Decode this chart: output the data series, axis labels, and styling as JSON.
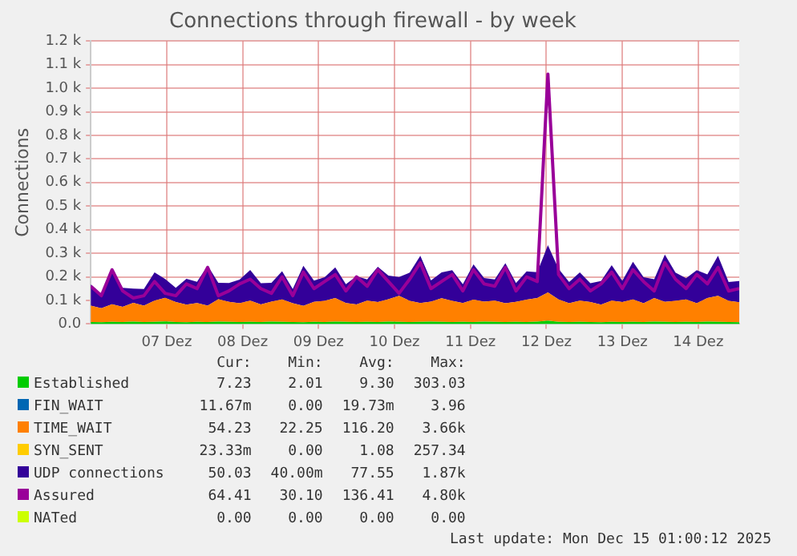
{
  "chart_data": {
    "type": "area",
    "title": "Connections through firewall - by week",
    "ylabel": "Connections",
    "stacked": true,
    "grid": true,
    "legend": "bottom",
    "marker": "none",
    "x": [
      6.5,
      6.64,
      6.78,
      6.92,
      7.06,
      7.2,
      7.34,
      7.48,
      7.62,
      7.76,
      7.9,
      8.04,
      8.18,
      8.32,
      8.46,
      8.6,
      8.74,
      8.88,
      9.02,
      9.16,
      9.3,
      9.44,
      9.58,
      9.72,
      9.86,
      10,
      10.14,
      10.28,
      10.42,
      10.56,
      10.7,
      10.84,
      10.98,
      11.12,
      11.26,
      11.4,
      11.54,
      11.68,
      11.82,
      11.96,
      12.1,
      12.24,
      12.38,
      12.52,
      12.66,
      12.8,
      12.94,
      13.08,
      13.22,
      13.36,
      13.5,
      13.64,
      13.78,
      13.92,
      14.06,
      14.2,
      14.34,
      14.48,
      14.62,
      14.76,
      14.9,
      15.04
    ],
    "xlim": [
      6.5,
      15.04
    ],
    "xticks": [
      {
        "value": 7.5,
        "label": "07 Dez"
      },
      {
        "value": 8.5,
        "label": "08 Dez"
      },
      {
        "value": 9.5,
        "label": "09 Dez"
      },
      {
        "value": 10.5,
        "label": "10 Dez"
      },
      {
        "value": 11.5,
        "label": "11 Dez"
      },
      {
        "value": 12.5,
        "label": "12 Dez"
      },
      {
        "value": 13.5,
        "label": "13 Dez"
      },
      {
        "value": 14.5,
        "label": "14 Dez"
      }
    ],
    "ylim": [
      0,
      1200
    ],
    "yticks": [
      {
        "value": 0,
        "label": "0.0"
      },
      {
        "value": 100,
        "label": "0.1 k"
      },
      {
        "value": 200,
        "label": "0.2 k"
      },
      {
        "value": 300,
        "label": "0.3 k"
      },
      {
        "value": 400,
        "label": "0.4 k"
      },
      {
        "value": 500,
        "label": "0.5 k"
      },
      {
        "value": 600,
        "label": "0.6 k"
      },
      {
        "value": 700,
        "label": "0.7 k"
      },
      {
        "value": 800,
        "label": "0.8 k"
      },
      {
        "value": 900,
        "label": "0.9 k"
      },
      {
        "value": 1000,
        "label": "1.0 k"
      },
      {
        "value": 1100,
        "label": "1.1 k"
      },
      {
        "value": 1200,
        "label": "1.2 k"
      }
    ],
    "series": [
      {
        "name": "Established",
        "color": "#00cc00",
        "values": [
          8,
          7,
          9,
          8,
          10,
          8,
          9,
          11,
          8,
          7,
          9,
          8,
          10,
          9,
          8,
          9,
          8,
          10,
          9,
          8,
          7,
          9,
          8,
          10,
          9,
          8,
          9,
          8,
          10,
          9,
          8,
          9,
          10,
          9,
          8,
          9,
          8,
          10,
          9,
          8,
          9,
          8,
          10,
          14,
          9,
          8,
          9,
          8,
          7,
          9,
          8,
          9,
          8,
          10,
          9,
          8,
          9,
          8,
          10,
          9,
          8,
          7
        ]
      },
      {
        "name": "FIN_WAIT",
        "color": "#0066b3",
        "values": [
          null,
          null,
          null,
          null,
          null,
          null,
          null,
          null,
          null,
          null,
          null,
          null,
          null,
          null,
          null,
          null,
          null,
          null,
          null,
          null,
          null,
          null,
          null,
          null,
          null,
          null,
          null,
          null,
          null,
          null,
          null,
          null,
          null,
          null,
          null,
          null,
          null,
          null,
          null,
          null,
          null,
          null,
          null,
          null,
          null,
          null,
          null,
          null,
          null,
          null,
          null,
          null,
          null,
          null,
          null,
          null,
          null,
          null,
          null,
          null,
          null,
          null
        ]
      },
      {
        "name": "TIME_WAIT",
        "color": "#ff8000",
        "values": [
          70,
          60,
          75,
          65,
          80,
          70,
          90,
          100,
          85,
          75,
          80,
          70,
          95,
          85,
          80,
          90,
          75,
          85,
          95,
          80,
          70,
          85,
          90,
          100,
          80,
          75,
          90,
          85,
          95,
          110,
          90,
          80,
          85,
          100,
          90,
          80,
          95,
          85,
          90,
          80,
          85,
          95,
          100,
          120,
          95,
          80,
          90,
          85,
          75,
          90,
          85,
          95,
          80,
          100,
          85,
          90,
          95,
          80,
          100,
          110,
          90,
          85
        ]
      },
      {
        "name": "SYN_SENT",
        "color": "#ffcc00",
        "values": [
          null,
          null,
          null,
          null,
          null,
          null,
          null,
          null,
          null,
          null,
          null,
          null,
          null,
          null,
          null,
          null,
          null,
          null,
          null,
          null,
          null,
          null,
          null,
          null,
          null,
          null,
          null,
          null,
          null,
          null,
          null,
          null,
          null,
          null,
          null,
          null,
          null,
          null,
          null,
          null,
          null,
          null,
          null,
          null,
          null,
          null,
          null,
          null,
          null,
          null,
          null,
          null,
          null,
          null,
          null,
          null,
          null,
          null,
          null,
          null,
          null,
          null
        ]
      },
      {
        "name": "UDP connections",
        "color": "#330099",
        "values": [
          90,
          60,
          150,
          80,
          60,
          70,
          120,
          80,
          60,
          110,
          90,
          170,
          70,
          80,
          100,
          130,
          90,
          80,
          120,
          60,
          170,
          90,
          100,
          130,
          80,
          120,
          90,
          150,
          100,
          80,
          120,
          200,
          90,
          110,
          130,
          80,
          150,
          100,
          90,
          170,
          80,
          120,
          110,
          200,
          130,
          90,
          120,
          80,
          100,
          150,
          90,
          160,
          110,
          80,
          200,
          120,
          90,
          140,
          100,
          170,
          80,
          90
        ]
      },
      {
        "name": "Assured",
        "type": "line",
        "color": "#990099",
        "values": [
          160,
          120,
          230,
          140,
          110,
          120,
          180,
          130,
          120,
          170,
          150,
          240,
          120,
          140,
          170,
          190,
          150,
          130,
          200,
          120,
          220,
          150,
          180,
          210,
          140,
          200,
          160,
          230,
          180,
          130,
          190,
          260,
          150,
          180,
          210,
          140,
          230,
          170,
          160,
          240,
          140,
          200,
          180,
          1060,
          210,
          150,
          190,
          140,
          170,
          220,
          150,
          230,
          180,
          140,
          260,
          190,
          150,
          210,
          170,
          240,
          140,
          150
        ]
      },
      {
        "name": "NATed",
        "type": "line",
        "color": "#ccff00",
        "values": [
          null,
          null,
          null,
          null,
          null,
          null,
          null,
          null,
          null,
          null,
          null,
          null,
          null,
          null,
          null,
          null,
          null,
          null,
          null,
          null,
          null,
          null,
          null,
          null,
          null,
          null,
          null,
          null,
          null,
          null,
          null,
          null,
          null,
          null,
          null,
          null,
          null,
          null,
          null,
          null,
          null,
          null,
          null,
          null,
          null,
          null,
          null,
          null,
          null,
          null,
          null,
          null,
          null,
          null,
          null,
          null,
          null,
          null,
          null,
          null,
          null,
          null
        ]
      }
    ],
    "annotations": [
      "Cur:",
      "Min:",
      "Avg:",
      "Max:",
      "7.23",
      "2.01",
      "9.30",
      "303.03",
      "11.67m",
      "0.00",
      "19.73m",
      "3.96",
      "54.23",
      "22.25",
      "116.20",
      "3.66k",
      "23.33m",
      "0.00",
      "1.08",
      "257.34",
      "50.03",
      "40.00m",
      "77.55",
      "1.87k",
      "64.41",
      "30.10",
      "136.41",
      "4.80k",
      "0.00",
      "0.00",
      "0.00",
      "0.00",
      "Last update: Mon Dec 15 01:00:12 2025"
    ]
  }
}
